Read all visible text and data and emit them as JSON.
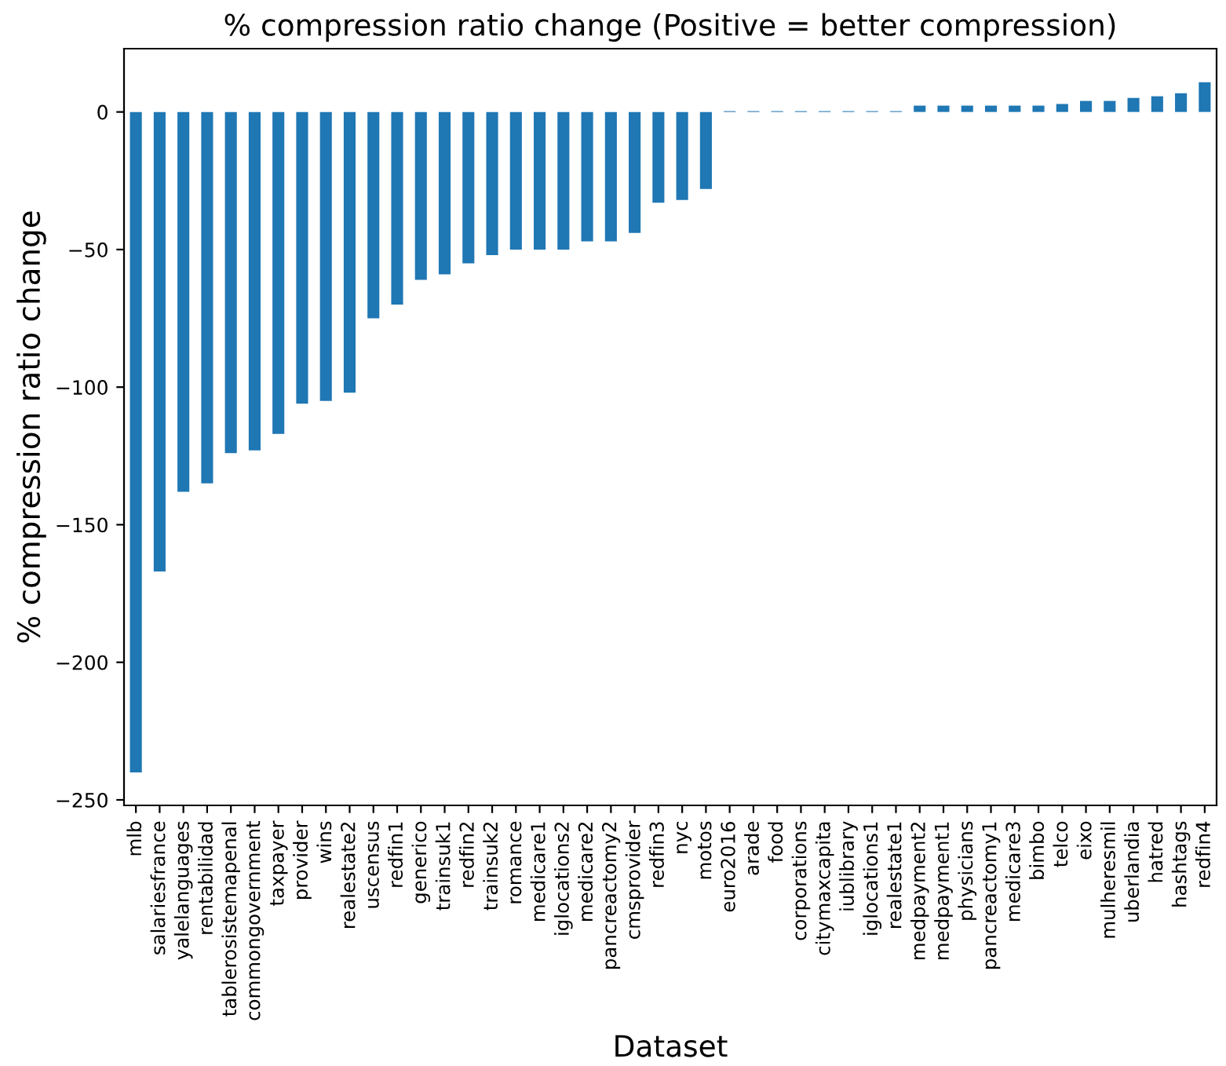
{
  "chart_data": {
    "type": "bar",
    "title": "% compression ratio change (Positive = better compression)",
    "xlabel": "Dataset",
    "ylabel": "% compression ratio change",
    "categories": [
      "mlb",
      "salariesfrance",
      "yalelanguages",
      "rentabilidad",
      "tablerosistemapenal",
      "commongovernment",
      "taxpayer",
      "provider",
      "wins",
      "realestate2",
      "uscensus",
      "redfin1",
      "generico",
      "trainsuk1",
      "redfin2",
      "trainsuk2",
      "romance",
      "medicare1",
      "iglocations2",
      "medicare2",
      "pancreactomy2",
      "cmsprovider",
      "redfin3",
      "nyc",
      "motos",
      "euro2016",
      "arade",
      "food",
      "corporations",
      "citymaxcapita",
      "iublibrary",
      "iglocations1",
      "realestate1",
      "medpayment2",
      "medpayment1",
      "physicians",
      "pancreactomy1",
      "medicare3",
      "bimbo",
      "telco",
      "eixo",
      "mulheresmil",
      "uberlandia",
      "hatred",
      "hashtags",
      "redfin4"
    ],
    "values": [
      -240,
      -167,
      -138,
      -135,
      -124,
      -123,
      -117,
      -106,
      -105,
      -102,
      -75,
      -70,
      -61,
      -59,
      -55,
      -52,
      -50,
      -50,
      -50,
      -47,
      -47,
      -44,
      -33,
      -32,
      -28,
      0.3,
      0.3,
      0.3,
      0.3,
      0.3,
      0.3,
      0.3,
      0.3,
      2.3,
      2.3,
      2.3,
      2.3,
      2.3,
      2.3,
      2.9,
      4,
      4,
      5.1,
      5.7,
      6.8,
      10.8
    ],
    "color": "#1f77b4",
    "ylim": [
      -252,
      23
    ],
    "yticks": [
      {
        "value": -250,
        "label": "−250"
      },
      {
        "value": -200,
        "label": "−200"
      },
      {
        "value": -150,
        "label": "−150"
      },
      {
        "value": -100,
        "label": "−100"
      },
      {
        "value": -50,
        "label": "−50"
      },
      0
    ],
    "grid": false
  }
}
